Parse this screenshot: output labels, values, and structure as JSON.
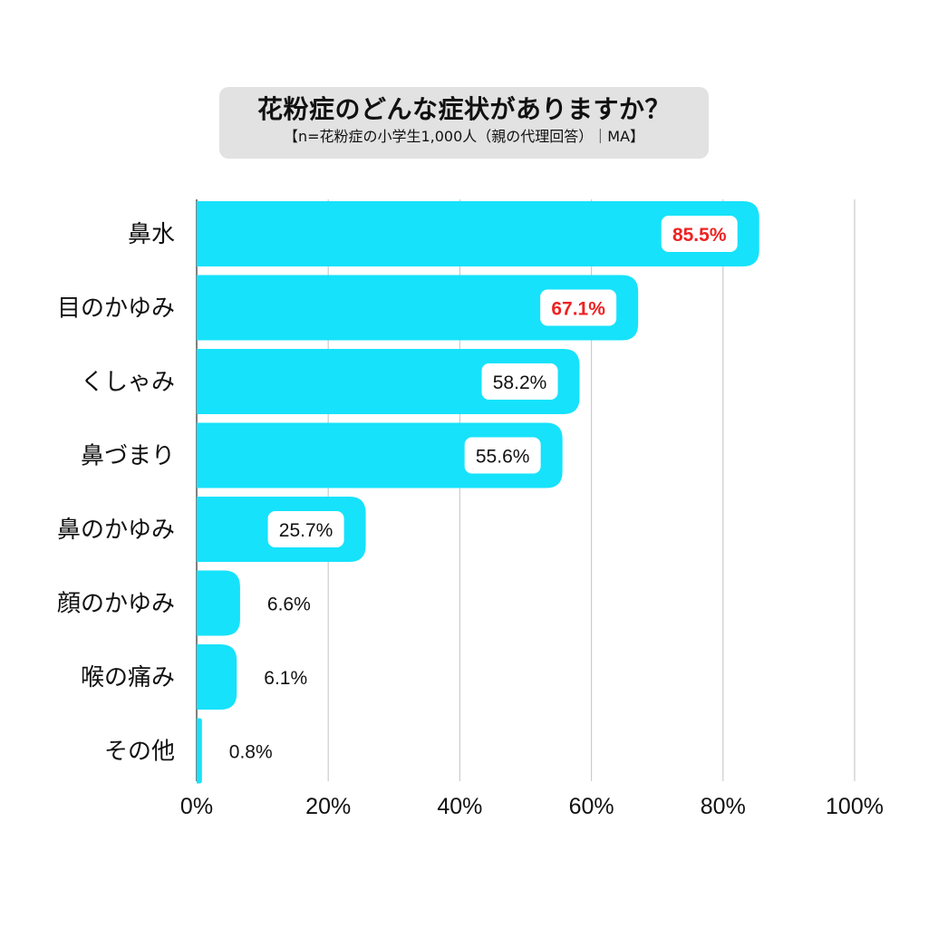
{
  "title": "花粉症のどんな症状がありますか？",
  "subtitle": "【n=花粉症の小学生1,000人（親の代理回答）｜MA】",
  "colors": {
    "bar": "#16e2fb",
    "highlight_text": "#ee2222",
    "grid": "#cccccc",
    "title_bg": "#e2e2e2"
  },
  "chart_data": {
    "type": "bar",
    "orientation": "horizontal",
    "categories": [
      "鼻水",
      "目のかゆみ",
      "くしゃみ",
      "鼻づまり",
      "鼻のかゆみ",
      "顔のかゆみ",
      "喉の痛み",
      "その他"
    ],
    "values": [
      85.5,
      67.1,
      58.2,
      55.6,
      25.7,
      6.6,
      6.1,
      0.8
    ],
    "value_labels": [
      "85.5%",
      "67.1%",
      "58.2%",
      "55.6%",
      "25.7%",
      "6.6%",
      "6.1%",
      "0.8%"
    ],
    "highlighted": [
      true,
      true,
      false,
      false,
      false,
      false,
      false,
      false
    ],
    "xlim": [
      0,
      100
    ],
    "xticks": [
      0,
      20,
      40,
      60,
      80,
      100
    ],
    "xtick_labels": [
      "0%",
      "20%",
      "40%",
      "60%",
      "80%",
      "100%"
    ],
    "grid": true
  }
}
